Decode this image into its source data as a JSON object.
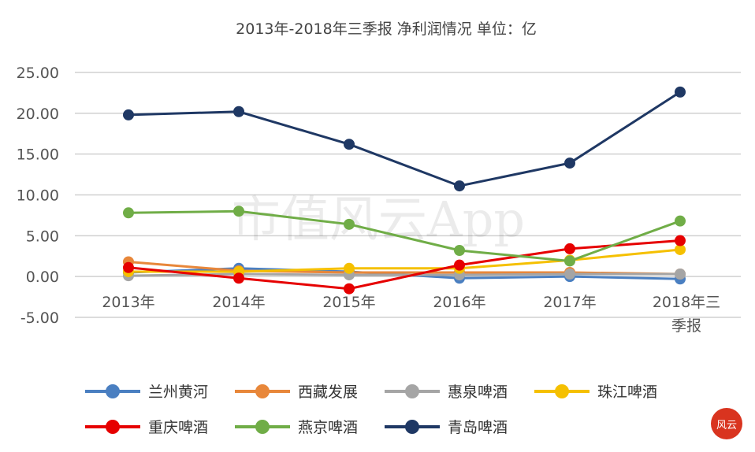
{
  "chart_data": {
    "type": "line",
    "title": "2013年-2018年三季报 净利润情况   单位：亿",
    "categories": [
      "2013年",
      "2014年",
      "2015年",
      "2016年",
      "2017年",
      "2018年三季报"
    ],
    "ylim": [
      -5,
      25
    ],
    "yticks": [
      "25.00",
      "20.00",
      "15.00",
      "10.00",
      "5.00",
      "0.00",
      "-5.00"
    ],
    "grid": true,
    "legend_position": "bottom",
    "series": [
      {
        "name": "兰州黄河",
        "color": "#4a7fc1",
        "values": [
          0.5,
          1.0,
          0.6,
          -0.2,
          0.0,
          -0.3
        ]
      },
      {
        "name": "西藏发展",
        "color": "#e8873a",
        "values": [
          1.8,
          0.7,
          0.5,
          0.5,
          0.5,
          0.3
        ]
      },
      {
        "name": "惠泉啤酒",
        "color": "#a5a5a5",
        "values": [
          0.1,
          0.3,
          0.2,
          0.2,
          0.3,
          0.3
        ]
      },
      {
        "name": "珠江啤酒",
        "color": "#f5c000",
        "values": [
          0.6,
          0.6,
          1.0,
          1.0,
          2.0,
          3.3
        ]
      },
      {
        "name": "重庆啤酒",
        "color": "#e60000",
        "values": [
          1.1,
          -0.2,
          -1.5,
          1.4,
          3.4,
          4.4
        ]
      },
      {
        "name": "燕京啤酒",
        "color": "#70ad47",
        "values": [
          7.8,
          8.0,
          6.4,
          3.2,
          1.9,
          6.8
        ]
      },
      {
        "name": "青岛啤酒",
        "color": "#1f3864",
        "values": [
          19.8,
          20.2,
          16.2,
          11.1,
          13.9,
          22.6
        ]
      }
    ]
  },
  "watermark": "市值风云App"
}
